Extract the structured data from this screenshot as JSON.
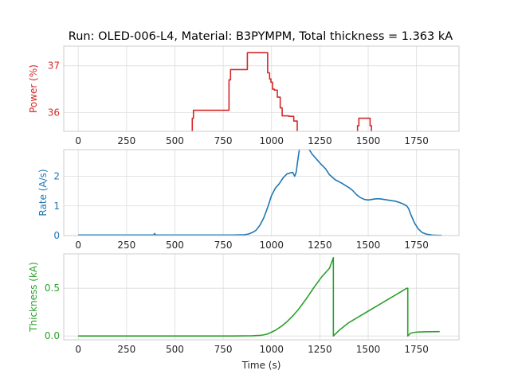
{
  "figure": {
    "title": "Run: OLED-006-L4, Material: B3PYMPM, Total thickness = 1.363 kA",
    "xlabel": "Time (s)"
  },
  "chart_data": [
    {
      "type": "line",
      "id": "power",
      "ylabel": "Power (%)",
      "color": "#d62728",
      "xlim": [
        -75,
        1970
      ],
      "ylim": [
        35.6,
        37.42
      ],
      "xticks": [
        0,
        250,
        500,
        750,
        1000,
        1250,
        1500,
        1750
      ],
      "xtick_labels": [
        "0",
        "250",
        "500",
        "750",
        "1000",
        "1250",
        "1500",
        "1750"
      ],
      "yticks": [
        36,
        37
      ],
      "ytick_labels": [
        "36",
        "37"
      ],
      "grid": true,
      "series": [
        {
          "x": [
            590,
            590,
            596,
            596,
            780,
            780,
            788,
            788,
            875,
            875,
            980,
            980,
            990,
            990,
            997,
            997,
            1005,
            1005,
            1015,
            1015,
            1030,
            1030,
            1045,
            1045,
            1055,
            1055,
            1090,
            1090,
            1115,
            1115,
            1133,
            1133
          ],
          "y": [
            35.6,
            35.88,
            35.88,
            36.05,
            36.05,
            36.7,
            36.7,
            36.92,
            36.92,
            37.28,
            37.28,
            36.85,
            36.85,
            36.72,
            36.72,
            36.65,
            36.65,
            36.5,
            36.5,
            36.48,
            36.48,
            36.33,
            36.33,
            36.1,
            36.1,
            35.93,
            35.93,
            35.92,
            35.92,
            35.82,
            35.82,
            35.6
          ]
        },
        {
          "x": [
            1445,
            1445,
            1452,
            1452,
            1510,
            1510,
            1517,
            1517
          ],
          "y": [
            35.6,
            35.72,
            35.72,
            35.88,
            35.88,
            35.72,
            35.72,
            35.6
          ]
        }
      ]
    },
    {
      "type": "line",
      "id": "rate",
      "ylabel": "Rate (A/s)",
      "color": "#1f77b4",
      "xlim": [
        -75,
        1970
      ],
      "ylim": [
        0,
        2.9
      ],
      "xticks": [
        0,
        250,
        500,
        750,
        1000,
        1250,
        1500,
        1750
      ],
      "xtick_labels": [
        "0",
        "250",
        "500",
        "750",
        "1000",
        "1250",
        "1500",
        "1750"
      ],
      "yticks": [
        0,
        1,
        2
      ],
      "ytick_labels": [
        "0",
        "1",
        "2"
      ],
      "grid": true,
      "series": [
        {
          "x": [
            0,
            100,
            200,
            300,
            390,
            395,
            400,
            500,
            600,
            700,
            800,
            860,
            880,
            900,
            920,
            940,
            960,
            980,
            1000,
            1020,
            1040,
            1060,
            1080,
            1100,
            1110,
            1120,
            1128,
            1135,
            1145,
            1155,
            1165,
            1175,
            1185,
            1195,
            1210,
            1230,
            1250,
            1280,
            1300,
            1330,
            1360,
            1380,
            1400,
            1420,
            1440,
            1460,
            1480,
            1500,
            1520,
            1540,
            1560,
            1580,
            1600,
            1620,
            1640,
            1660,
            1680,
            1700,
            1710,
            1720,
            1740,
            1760,
            1780,
            1800,
            1830,
            1860,
            1880
          ],
          "y": [
            0.02,
            0.02,
            0.02,
            0.02,
            0.02,
            0.07,
            0.02,
            0.02,
            0.02,
            0.02,
            0.02,
            0.03,
            0.05,
            0.1,
            0.18,
            0.35,
            0.6,
            0.95,
            1.35,
            1.6,
            1.75,
            1.95,
            2.08,
            2.12,
            2.13,
            2.0,
            2.15,
            2.5,
            2.95,
            3.2,
            3.3,
            3.2,
            3.0,
            2.9,
            2.75,
            2.6,
            2.45,
            2.25,
            2.05,
            1.88,
            1.78,
            1.7,
            1.62,
            1.52,
            1.38,
            1.28,
            1.22,
            1.2,
            1.22,
            1.24,
            1.24,
            1.22,
            1.2,
            1.18,
            1.16,
            1.12,
            1.07,
            1.0,
            0.9,
            0.72,
            0.42,
            0.22,
            0.1,
            0.05,
            0.02,
            0.01,
            0.01
          ]
        }
      ]
    },
    {
      "type": "line",
      "id": "thickness",
      "ylabel": "Thickness (kA)",
      "color": "#2ca02c",
      "xlim": [
        -75,
        1970
      ],
      "ylim": [
        -0.04,
        0.86
      ],
      "xticks": [
        0,
        250,
        500,
        750,
        1000,
        1250,
        1500,
        1750
      ],
      "xtick_labels": [
        "0",
        "250",
        "500",
        "750",
        "1000",
        "1250",
        "1500",
        "1750"
      ],
      "yticks": [
        0.0,
        0.5
      ],
      "ytick_labels": [
        "0.0",
        "0.5"
      ],
      "grid": true,
      "series": [
        {
          "x": [
            0,
            200,
            400,
            600,
            800,
            900,
            940,
            960,
            980,
            1000,
            1020,
            1050,
            1080,
            1110,
            1140,
            1180,
            1220,
            1260,
            1300,
            1320,
            1320,
            1350,
            1400,
            1450,
            1500,
            1550,
            1600,
            1650,
            1700,
            1705,
            1705,
            1720,
            1740,
            1760,
            1790,
            1820,
            1870
          ],
          "y": [
            0.0,
            0.0,
            0.0,
            0.0,
            0.0,
            0.002,
            0.006,
            0.012,
            0.022,
            0.04,
            0.06,
            0.1,
            0.15,
            0.21,
            0.28,
            0.39,
            0.51,
            0.62,
            0.71,
            0.82,
            0.0,
            0.06,
            0.14,
            0.2,
            0.26,
            0.32,
            0.38,
            0.44,
            0.5,
            0.5,
            0.0,
            0.03,
            0.038,
            0.042,
            0.044,
            0.045,
            0.046
          ]
        }
      ]
    }
  ]
}
